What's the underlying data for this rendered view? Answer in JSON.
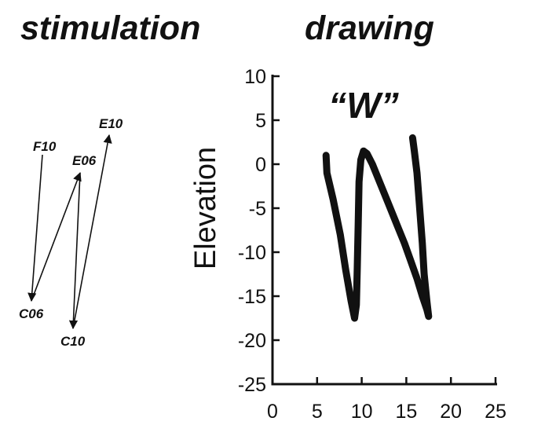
{
  "panels": {
    "stimulation_title": "stimulation",
    "drawing_title": "drawing"
  },
  "stimulation": {
    "electrodes": [
      {
        "id": "F10",
        "label": "F10"
      },
      {
        "id": "E06",
        "label": "E06"
      },
      {
        "id": "E10",
        "label": "E10"
      },
      {
        "id": "C06",
        "label": "C06"
      },
      {
        "id": "C10",
        "label": "C10"
      }
    ],
    "sequence": [
      "F10",
      "C06",
      "E06",
      "C10",
      "E10"
    ]
  },
  "chart_data": {
    "type": "line",
    "annotation": "“W”",
    "xlabel": "",
    "ylabel": "Elevation",
    "xlim": [
      0,
      25
    ],
    "ylim": [
      -25,
      10
    ],
    "xticks": [
      0,
      5,
      10,
      15,
      20,
      25
    ],
    "yticks": [
      10,
      5,
      0,
      -5,
      -10,
      -15,
      -20,
      -25
    ],
    "grid": false,
    "series": [
      {
        "color": "#111111",
        "points": [
          [
            6.0,
            1.0
          ],
          [
            6.1,
            -1.0
          ],
          [
            6.8,
            -4.0
          ],
          [
            7.6,
            -8.0
          ],
          [
            8.2,
            -12.0
          ],
          [
            8.8,
            -15.5
          ],
          [
            9.2,
            -17.5
          ],
          [
            9.4,
            -16.0
          ],
          [
            9.5,
            -12.0
          ],
          [
            9.6,
            -7.0
          ],
          [
            9.7,
            -2.0
          ],
          [
            9.9,
            0.5
          ],
          [
            10.2,
            1.5
          ],
          [
            10.6,
            1.2
          ],
          [
            11.2,
            0.0
          ],
          [
            12.0,
            -2.0
          ],
          [
            13.0,
            -4.5
          ],
          [
            14.0,
            -7.0
          ],
          [
            14.8,
            -9.0
          ],
          [
            15.5,
            -11.0
          ],
          [
            16.2,
            -13.0
          ],
          [
            16.8,
            -15.0
          ],
          [
            17.3,
            -16.5
          ],
          [
            17.5,
            -17.3
          ],
          [
            17.3,
            -15.5
          ],
          [
            17.0,
            -12.5
          ],
          [
            16.8,
            -9.0
          ],
          [
            16.5,
            -5.0
          ],
          [
            16.2,
            -1.0
          ],
          [
            15.9,
            1.5
          ],
          [
            15.7,
            3.0
          ]
        ]
      }
    ]
  }
}
